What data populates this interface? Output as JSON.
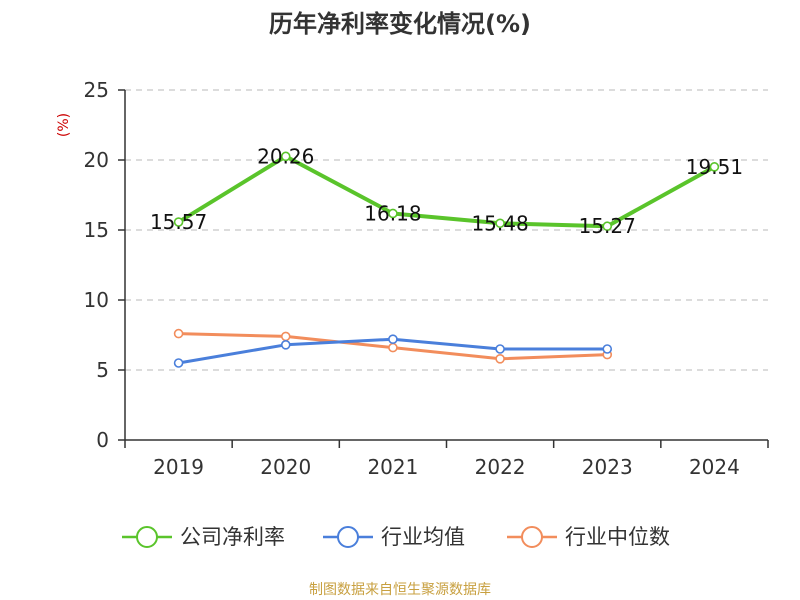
{
  "chart_data": {
    "type": "line",
    "title": "历年净利率变化情况(%)",
    "ylabel": "(%)",
    "xlabel": "",
    "categories": [
      "2019",
      "2020",
      "2021",
      "2022",
      "2023",
      "2024"
    ],
    "ylim": [
      0,
      25
    ],
    "yticks": [
      0,
      5,
      10,
      15,
      20,
      25
    ],
    "grid": true,
    "legend_position": "bottom",
    "series": [
      {
        "name": "公司净利率",
        "color": "#5ac42b",
        "values": [
          15.57,
          20.26,
          16.18,
          15.48,
          15.27,
          19.51
        ],
        "labels": [
          "15.57",
          "20.26",
          "16.18",
          "15.48",
          "15.27",
          "19.51"
        ]
      },
      {
        "name": "行业均值",
        "color": "#4a7fdb",
        "values": [
          5.5,
          6.8,
          7.2,
          6.5,
          6.5,
          null
        ]
      },
      {
        "name": "行业中位数",
        "color": "#f28d5c",
        "values": [
          7.6,
          7.4,
          6.6,
          5.8,
          6.1,
          null
        ]
      }
    ]
  },
  "source_text": "制图数据来自恒生聚源数据库"
}
